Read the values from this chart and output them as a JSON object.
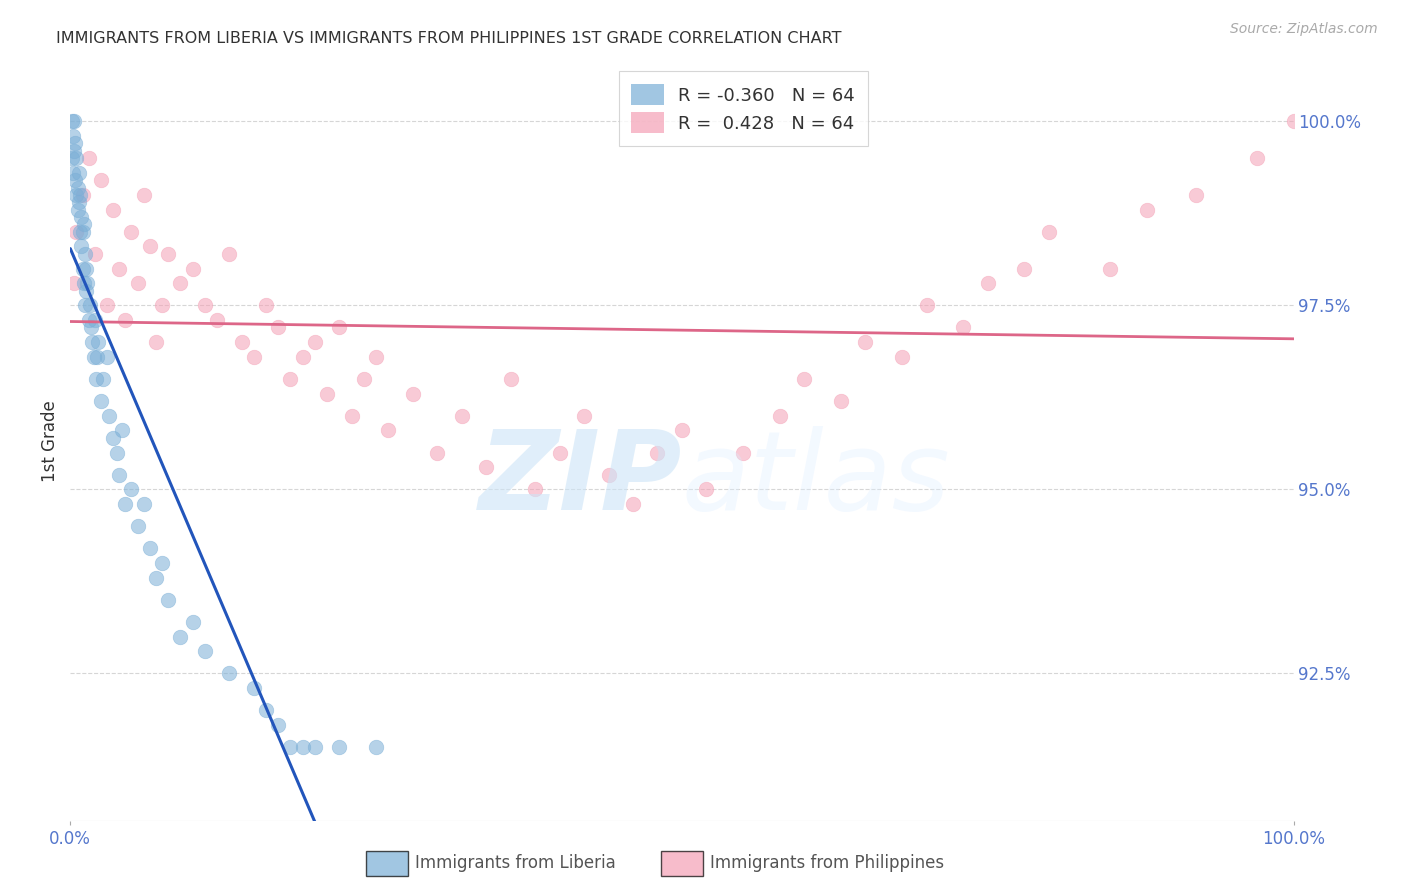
{
  "title": "IMMIGRANTS FROM LIBERIA VS IMMIGRANTS FROM PHILIPPINES 1ST GRADE CORRELATION CHART",
  "source": "Source: ZipAtlas.com",
  "ylabel": "1st Grade",
  "ylabel_tick_vals": [
    92.5,
    95.0,
    97.5,
    100.0
  ],
  "xmin": 0.0,
  "xmax": 100.0,
  "ymin": 90.5,
  "ymax": 100.8,
  "legend_blue_label": "Immigrants from Liberia",
  "legend_pink_label": "Immigrants from Philippines",
  "R_blue": -0.36,
  "N_blue": 64,
  "R_pink": 0.428,
  "N_pink": 64,
  "background_color": "#ffffff",
  "grid_color": "#cccccc",
  "blue_color": "#7aaed6",
  "pink_color": "#f4a0b5",
  "blue_line_color": "#2255bb",
  "pink_line_color": "#dd6688",
  "tick_color": "#5577cc",
  "blue_x": [
    0.1,
    0.1,
    0.2,
    0.2,
    0.3,
    0.3,
    0.4,
    0.4,
    0.5,
    0.5,
    0.6,
    0.6,
    0.7,
    0.7,
    0.8,
    0.8,
    0.9,
    0.9,
    1.0,
    1.0,
    1.1,
    1.1,
    1.2,
    1.2,
    1.3,
    1.3,
    1.4,
    1.5,
    1.6,
    1.7,
    1.8,
    1.9,
    2.0,
    2.1,
    2.2,
    2.3,
    2.5,
    2.7,
    3.0,
    3.2,
    3.5,
    3.8,
    4.0,
    4.2,
    4.5,
    5.0,
    5.5,
    6.0,
    6.5,
    7.0,
    7.5,
    8.0,
    9.0,
    10.0,
    11.0,
    13.0,
    15.0,
    16.0,
    17.0,
    18.0,
    19.0,
    20.0,
    22.0,
    25.0
  ],
  "blue_y": [
    100.0,
    99.5,
    99.8,
    99.3,
    100.0,
    99.6,
    99.2,
    99.7,
    99.0,
    99.5,
    99.1,
    98.8,
    99.3,
    98.9,
    99.0,
    98.5,
    98.7,
    98.3,
    98.5,
    98.0,
    98.6,
    97.8,
    98.2,
    97.5,
    98.0,
    97.7,
    97.8,
    97.3,
    97.5,
    97.2,
    97.0,
    96.8,
    97.3,
    96.5,
    96.8,
    97.0,
    96.2,
    96.5,
    96.8,
    96.0,
    95.7,
    95.5,
    95.2,
    95.8,
    94.8,
    95.0,
    94.5,
    94.8,
    94.2,
    93.8,
    94.0,
    93.5,
    93.0,
    93.2,
    92.8,
    92.5,
    92.3,
    92.0,
    91.8,
    91.5,
    91.5,
    91.5,
    91.5,
    91.5
  ],
  "pink_x": [
    0.3,
    0.5,
    1.0,
    1.5,
    2.0,
    2.5,
    3.0,
    3.5,
    4.0,
    4.5,
    5.0,
    5.5,
    6.0,
    6.5,
    7.0,
    7.5,
    8.0,
    9.0,
    10.0,
    11.0,
    12.0,
    13.0,
    14.0,
    15.0,
    16.0,
    17.0,
    18.0,
    19.0,
    20.0,
    21.0,
    22.0,
    23.0,
    24.0,
    25.0,
    26.0,
    28.0,
    30.0,
    32.0,
    34.0,
    36.0,
    38.0,
    40.0,
    42.0,
    44.0,
    46.0,
    48.0,
    50.0,
    52.0,
    55.0,
    58.0,
    60.0,
    63.0,
    65.0,
    68.0,
    70.0,
    73.0,
    75.0,
    78.0,
    80.0,
    85.0,
    88.0,
    92.0,
    97.0,
    100.0
  ],
  "pink_y": [
    97.8,
    98.5,
    99.0,
    99.5,
    98.2,
    99.2,
    97.5,
    98.8,
    98.0,
    97.3,
    98.5,
    97.8,
    99.0,
    98.3,
    97.0,
    97.5,
    98.2,
    97.8,
    98.0,
    97.5,
    97.3,
    98.2,
    97.0,
    96.8,
    97.5,
    97.2,
    96.5,
    96.8,
    97.0,
    96.3,
    97.2,
    96.0,
    96.5,
    96.8,
    95.8,
    96.3,
    95.5,
    96.0,
    95.3,
    96.5,
    95.0,
    95.5,
    96.0,
    95.2,
    94.8,
    95.5,
    95.8,
    95.0,
    95.5,
    96.0,
    96.5,
    96.2,
    97.0,
    96.8,
    97.5,
    97.2,
    97.8,
    98.0,
    98.5,
    98.0,
    98.8,
    99.0,
    99.5,
    100.0
  ]
}
